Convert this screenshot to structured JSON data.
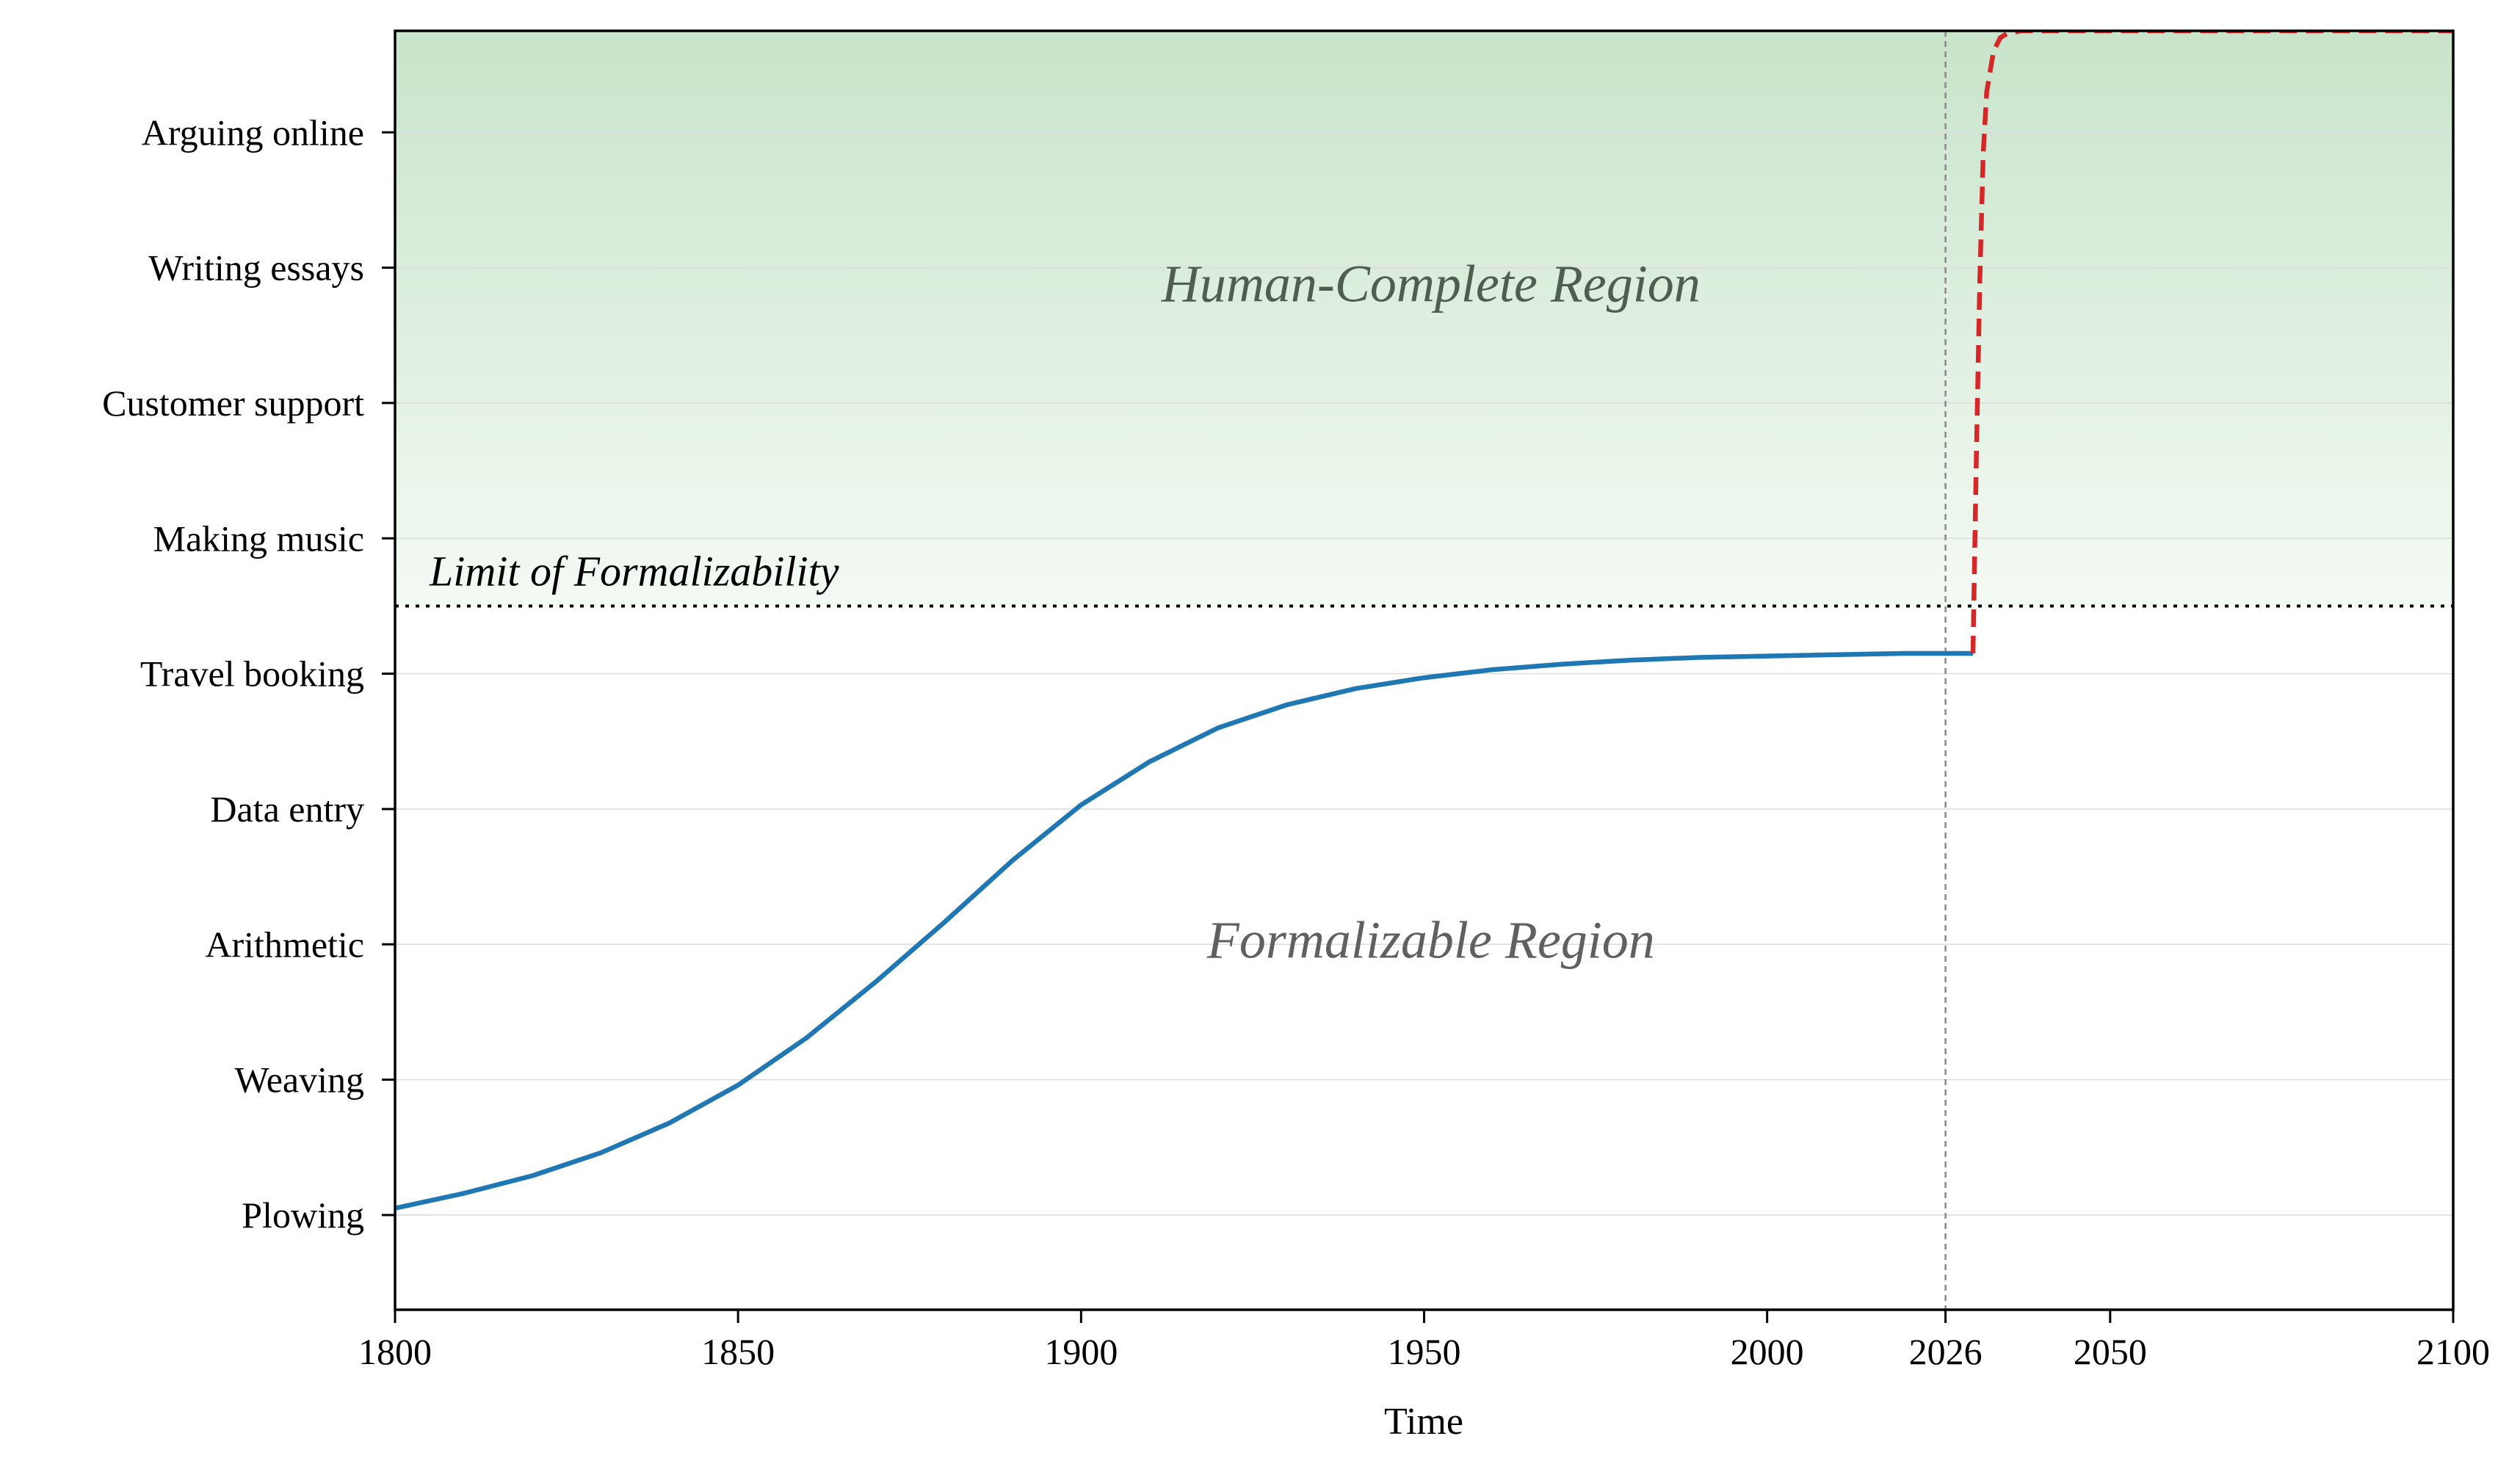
{
  "chart_data": {
    "type": "line",
    "title": "",
    "xlabel": "Time",
    "ylabel": "",
    "xlim": [
      1800,
      2100
    ],
    "ylim": [
      -0.7,
      8.75
    ],
    "x_ticks": [
      1800,
      1850,
      1900,
      1950,
      2000,
      2026,
      2050,
      2100
    ],
    "y_tick_labels": [
      "Plowing",
      "Weaving",
      "Arithmetic",
      "Data entry",
      "Travel booking",
      "Making music",
      "Customer support",
      "Writing essays",
      "Arguing online"
    ],
    "grid": "horizontal",
    "limit_line": {
      "label": "Limit of Formalizability",
      "y": 4.5
    },
    "vertical_marker": {
      "x": 2026
    },
    "regions": [
      {
        "label": "Human-Complete Region",
        "y_from": 4.5,
        "y_to": 8.75
      },
      {
        "label": "Formalizable Region",
        "y_from": -0.7,
        "y_to": 4.5
      }
    ],
    "series": [
      {
        "style": "solid",
        "color": "#1f77b4",
        "x": [
          1800,
          1810,
          1820,
          1830,
          1840,
          1850,
          1860,
          1870,
          1880,
          1890,
          1900,
          1910,
          1920,
          1930,
          1940,
          1950,
          1960,
          1970,
          1980,
          1990,
          2000,
          2010,
          2020,
          2030
        ],
        "y": [
          0.05,
          0.16,
          0.29,
          0.46,
          0.68,
          0.96,
          1.31,
          1.72,
          2.16,
          2.62,
          3.03,
          3.35,
          3.6,
          3.77,
          3.89,
          3.97,
          4.03,
          4.07,
          4.1,
          4.12,
          4.13,
          4.14,
          4.15,
          4.15
        ]
      },
      {
        "style": "dashed",
        "color": "#d62728",
        "x": [
          2030,
          2030.5,
          2031,
          2031.5,
          2032,
          2033,
          2034,
          2035,
          2037,
          2040,
          2050,
          2060,
          2070,
          2080,
          2090,
          2100
        ],
        "y": [
          4.15,
          5.6,
          6.9,
          7.85,
          8.3,
          8.6,
          8.7,
          8.73,
          8.75,
          8.75,
          8.75,
          8.75,
          8.75,
          8.75,
          8.75,
          8.75
        ]
      }
    ],
    "colors": {
      "region_top": "#c8e4ca",
      "region_bottom": "#f4faf4",
      "human_label": "#4f5f4f",
      "formal_label": "#606060"
    }
  }
}
